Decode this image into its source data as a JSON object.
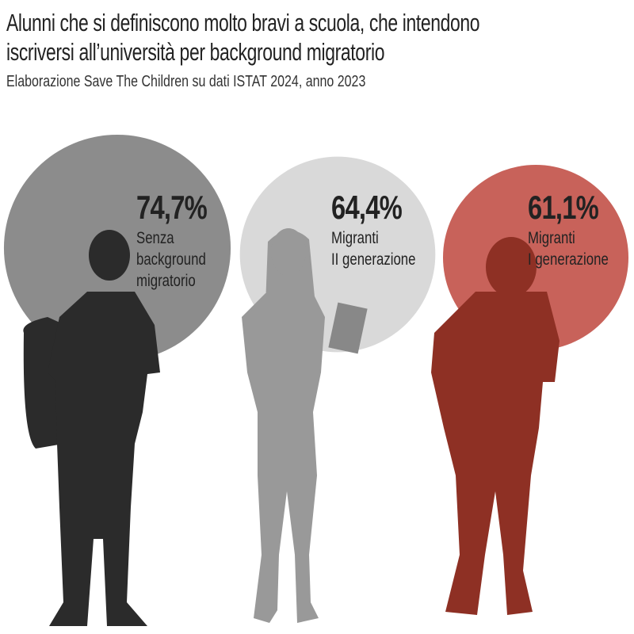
{
  "chart_data": {
    "type": "bubble",
    "title": "Alunni che si definiscono molto bravi a scuola, che intendono\niscriversi all’università per background migratorio",
    "subtitle": "Elaborazione Save The Children su dati ISTAT 2024, anno 2023",
    "categories": [
      "Senza\nbackground\nmigratorio",
      "Migranti\nII generazione",
      "Migranti\nI generazione"
    ],
    "values": [
      74.7,
      64.4,
      61.1
    ],
    "value_labels": [
      "74,7%",
      "64,4%",
      "61,1%"
    ],
    "colors": [
      "#8c8c8c",
      "#d9d9d9",
      "#c8625a"
    ]
  }
}
